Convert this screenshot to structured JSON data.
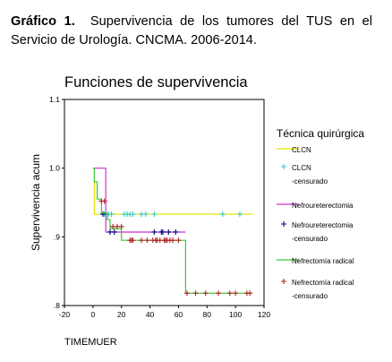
{
  "caption": {
    "label": "Gráfico 1.",
    "text": "Supervivencia de los tumores del TUS en el Servicio de Urología. CNCMA. 2006-2014."
  },
  "chart_data": {
    "type": "line",
    "title": "Funciones de supervivencia",
    "xlabel": "TIMEMUER",
    "ylabel": "Supervivencia acum",
    "xlim": [
      -20,
      120
    ],
    "ylim": [
      0.8,
      1.1
    ],
    "xticks": [
      "-20",
      "0",
      "20",
      "40",
      "60",
      "80",
      "100",
      "120"
    ],
    "yticks": [
      ".8",
      ".9",
      "1.0",
      "1.1"
    ],
    "grid": false,
    "legend": {
      "title": "Técnica quirúrgica",
      "placement": "right",
      "entries": [
        {
          "label": "CLCN",
          "sublabel": "",
          "kind": "line",
          "color": "#e6e600"
        },
        {
          "label": "CLCN",
          "sublabel": "-censurado",
          "kind": "plus",
          "color": "#33cccc"
        },
        {
          "label": "Nefroureterectomia",
          "sublabel": "",
          "kind": "line",
          "color": "#cc33cc"
        },
        {
          "label": "Nefroureterectomia",
          "sublabel": "-censurado",
          "kind": "plus",
          "color": "#000080"
        },
        {
          "label": "Nefrectomía radical",
          "sublabel": "",
          "kind": "line",
          "color": "#33cc33"
        },
        {
          "label": "Nefrectomía radical",
          "sublabel": "-censurado",
          "kind": "plus",
          "color": "#b22222"
        }
      ]
    },
    "series": [
      {
        "color": "#e6e600",
        "steps": [
          [
            0,
            1.0
          ],
          [
            1,
            1.0
          ],
          [
            1,
            0.933
          ],
          [
            112,
            0.933
          ]
        ],
        "censored": {
          "color": "#33cccc",
          "points": [
            [
              8,
              0.933
            ],
            [
              11,
              0.933
            ],
            [
              13,
              0.933
            ],
            [
              22,
              0.933
            ],
            [
              24,
              0.933
            ],
            [
              26,
              0.933
            ],
            [
              28,
              0.933
            ],
            [
              34,
              0.933
            ],
            [
              37,
              0.933
            ],
            [
              43,
              0.933
            ],
            [
              91,
              0.933
            ],
            [
              103,
              0.933
            ]
          ]
        }
      },
      {
        "color": "#cc33cc",
        "steps": [
          [
            0,
            1.0
          ],
          [
            9,
            1.0
          ],
          [
            9,
            0.907
          ],
          [
            65,
            0.907
          ]
        ],
        "censored": {
          "color": "#000080",
          "points": [
            [
              7,
              0.933
            ],
            [
              12,
              0.907
            ],
            [
              15,
              0.907
            ],
            [
              43,
              0.907
            ],
            [
              48,
              0.907
            ],
            [
              49,
              0.907
            ],
            [
              53,
              0.907
            ],
            [
              58,
              0.907
            ]
          ]
        }
      },
      {
        "color": "#33cc33",
        "steps": [
          [
            0,
            1.0
          ],
          [
            1,
            1.0
          ],
          [
            1,
            0.98
          ],
          [
            3,
            0.98
          ],
          [
            3,
            0.955
          ],
          [
            6,
            0.955
          ],
          [
            6,
            0.935
          ],
          [
            10,
            0.935
          ],
          [
            10,
            0.925
          ],
          [
            12,
            0.925
          ],
          [
            12,
            0.912
          ],
          [
            20,
            0.912
          ],
          [
            20,
            0.895
          ],
          [
            65,
            0.895
          ],
          [
            65,
            0.818
          ],
          [
            112,
            0.818
          ]
        ],
        "censored": {
          "color": "#b22222",
          "points": [
            [
              6,
              0.952
            ],
            [
              8,
              0.952
            ],
            [
              14,
              0.915
            ],
            [
              17,
              0.915
            ],
            [
              20,
              0.915
            ],
            [
              26,
              0.895
            ],
            [
              27,
              0.895
            ],
            [
              28,
              0.895
            ],
            [
              34,
              0.895
            ],
            [
              38,
              0.895
            ],
            [
              42,
              0.895
            ],
            [
              44,
              0.895
            ],
            [
              45,
              0.895
            ],
            [
              47,
              0.895
            ],
            [
              50,
              0.895
            ],
            [
              51,
              0.895
            ],
            [
              52,
              0.895
            ],
            [
              54,
              0.895
            ],
            [
              56,
              0.895
            ],
            [
              60,
              0.895
            ],
            [
              66,
              0.818
            ],
            [
              72,
              0.818
            ],
            [
              79,
              0.818
            ],
            [
              88,
              0.818
            ],
            [
              96,
              0.818
            ],
            [
              100,
              0.818
            ],
            [
              108,
              0.818
            ],
            [
              110,
              0.818
            ]
          ]
        }
      }
    ]
  }
}
